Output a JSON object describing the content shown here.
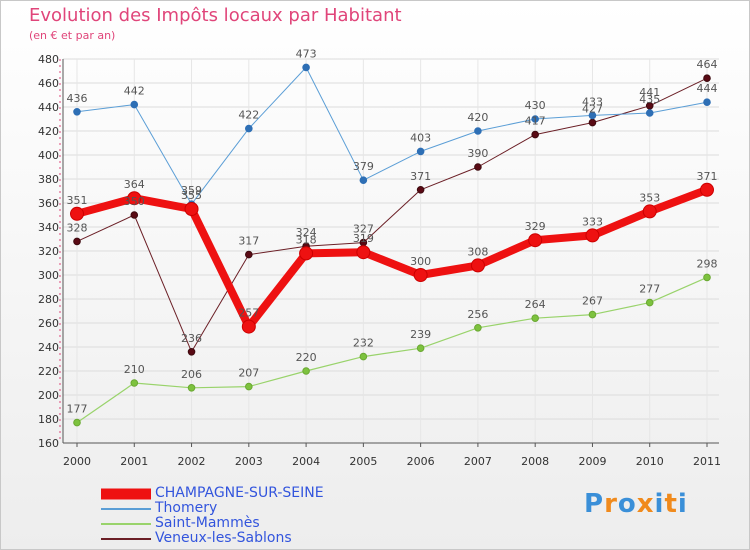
{
  "chart_data": {
    "type": "line",
    "title": "Evolution des Impôts locaux par Habitant",
    "subtitle": "(en € et par an)",
    "xlabel": "",
    "ylabel": "",
    "ylim": [
      160,
      480
    ],
    "y_ticks": [
      160,
      180,
      200,
      220,
      240,
      260,
      280,
      300,
      320,
      340,
      360,
      380,
      400,
      420,
      440,
      460,
      480
    ],
    "grid": true,
    "legend_position": "bottom-left",
    "categories": [
      "2000",
      "2001",
      "2002",
      "2003",
      "2004",
      "2005",
      "2006",
      "2007",
      "2008",
      "2009",
      "2010",
      "2011"
    ],
    "series": [
      {
        "name": "Veneux-les-Sablons",
        "color": "#6b1f26",
        "values": [
          328,
          350,
          236,
          317,
          324,
          327,
          371,
          390,
          417,
          427,
          441,
          464
        ],
        "labels": [
          "328",
          "350",
          "236",
          "317",
          "324",
          "327",
          "371",
          "390",
          "417",
          "427",
          "441",
          "464"
        ]
      },
      {
        "name": "Saint-Mammès",
        "color": "#99d36b",
        "values": [
          177,
          210,
          206,
          207,
          220,
          232,
          239,
          256,
          264,
          267,
          277,
          298
        ],
        "labels": [
          "177",
          "210",
          "206",
          "207",
          "220",
          "232",
          "239",
          "256",
          "264",
          "267",
          "277",
          "298"
        ]
      },
      {
        "name": "Thomery",
        "color": "#5b9ed6",
        "values": [
          436,
          442,
          359,
          422,
          473,
          379,
          403,
          420,
          430,
          433,
          435,
          444
        ],
        "labels": [
          "436",
          "442",
          "359",
          "422",
          "473",
          "379",
          "403",
          "420",
          "430",
          "433",
          "435",
          "444"
        ]
      },
      {
        "name": "CHAMPAGNE-SUR-SEINE",
        "color": "#ee1111",
        "values": [
          351,
          364,
          355,
          257,
          318,
          319,
          300,
          308,
          329,
          333,
          353,
          371
        ],
        "labels": [
          "351",
          "364",
          "355",
          "257",
          "318",
          "319",
          "300",
          "308",
          "329",
          "333",
          "353",
          "371"
        ]
      }
    ]
  },
  "legend": {
    "items": [
      {
        "label": "CHAMPAGNE-SUR-SEINE",
        "color": "#ee1111"
      },
      {
        "label": "Thomery",
        "color": "#5b9ed6"
      },
      {
        "label": "Saint-Mammès",
        "color": "#99d36b"
      },
      {
        "label": "Veneux-les-Sablons",
        "color": "#6b1f26"
      }
    ]
  },
  "logo": {
    "text": "Proxiti",
    "letter_colors": [
      "#3a8fd8",
      "#f08a1c",
      "#3a8fd8",
      "#f08a1c",
      "#3a8fd8",
      "#f08a1c",
      "#3a8fd8"
    ]
  }
}
